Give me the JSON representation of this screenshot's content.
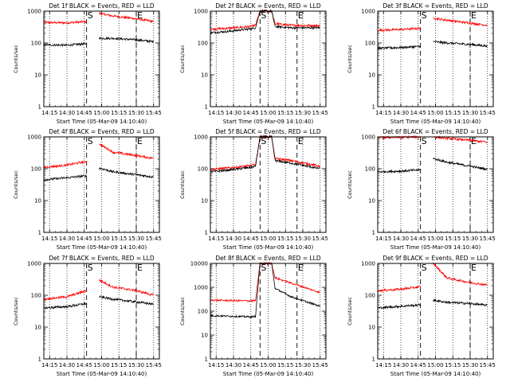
{
  "chart_data": [
    {
      "type": "line",
      "title": "Det 1f BLACK = Events, RED = LLD",
      "xlabel": "Start Time (05-Mar-09 14:10:40)",
      "ylabel": "Counts/sec",
      "yscale": "log",
      "ylim": [
        1,
        1000
      ],
      "xlim": [
        "14:10",
        "15:50"
      ],
      "xticks": [
        "14:15",
        "14:30",
        "14:45",
        "15:00",
        "15:15",
        "15:30",
        "15:45"
      ],
      "yticks": [
        "1",
        "10",
        "100",
        "1000"
      ],
      "markers": [
        {
          "label": "S",
          "time": "14:47"
        },
        {
          "label": "E",
          "time": "15:30"
        }
      ],
      "gap": [
        "14:47",
        "14:58"
      ],
      "series": [
        {
          "name": "Events",
          "color": "#000000",
          "x": [
            "14:10",
            "14:30",
            "14:47",
            "14:58",
            "15:10",
            "15:30",
            "15:45"
          ],
          "values": [
            88,
            85,
            95,
            140,
            140,
            125,
            110
          ]
        },
        {
          "name": "LLD",
          "color": "#ff0000",
          "x": [
            "14:10",
            "14:30",
            "14:47",
            "14:58",
            "15:10",
            "15:30",
            "15:45"
          ],
          "values": [
            440,
            430,
            470,
            850,
            700,
            580,
            470
          ]
        }
      ]
    },
    {
      "type": "line",
      "title": "Det 2f BLACK = Events, RED = LLD",
      "xlabel": "Start Time (05-Mar-09 14:10:40)",
      "ylabel": "Counts/sec",
      "yscale": "log",
      "ylim": [
        1,
        1000
      ],
      "xlim": [
        "14:10",
        "15:50"
      ],
      "xticks": [
        "14:15",
        "14:30",
        "14:45",
        "15:00",
        "15:15",
        "15:30",
        "15:45"
      ],
      "yticks": [
        "1",
        "10",
        "100",
        "1000"
      ],
      "markers": [
        {
          "label": "S",
          "time": "14:53"
        },
        {
          "label": "E",
          "time": "15:25"
        }
      ],
      "gap": null,
      "series": [
        {
          "name": "Events",
          "color": "#000000",
          "x": [
            "14:10",
            "14:25",
            "14:45",
            "14:49",
            "14:53",
            "15:03",
            "15:06",
            "15:20",
            "15:45"
          ],
          "values": [
            210,
            230,
            280,
            300,
            1000,
            1000,
            330,
            300,
            300
          ]
        },
        {
          "name": "LLD",
          "color": "#ff0000",
          "x": [
            "14:10",
            "14:25",
            "14:45",
            "14:49",
            "14:53",
            "15:03",
            "15:06",
            "15:20",
            "15:45"
          ],
          "values": [
            270,
            290,
            330,
            360,
            1000,
            1000,
            400,
            360,
            350
          ]
        }
      ]
    },
    {
      "type": "line",
      "title": "Det 3f BLACK = Events, RED = LLD",
      "xlabel": "Start Time (05-Mar-09 14:10:40)",
      "ylabel": "Counts/sec",
      "yscale": "log",
      "ylim": [
        1,
        1000
      ],
      "xlim": [
        "14:10",
        "15:50"
      ],
      "xticks": [
        "14:15",
        "14:30",
        "14:45",
        "15:00",
        "15:15",
        "15:30",
        "15:45"
      ],
      "yticks": [
        "1",
        "10",
        "100",
        "1000"
      ],
      "markers": [
        {
          "label": "S",
          "time": "14:47"
        },
        {
          "label": "E",
          "time": "15:30"
        }
      ],
      "gap": [
        "14:47",
        "14:58"
      ],
      "series": [
        {
          "name": "Events",
          "color": "#000000",
          "x": [
            "14:10",
            "14:30",
            "14:47",
            "14:58",
            "15:10",
            "15:30",
            "15:45"
          ],
          "values": [
            68,
            72,
            78,
            110,
            100,
            90,
            80
          ]
        },
        {
          "name": "LLD",
          "color": "#ff0000",
          "x": [
            "14:10",
            "14:30",
            "14:47",
            "14:58",
            "15:10",
            "15:30",
            "15:45"
          ],
          "values": [
            250,
            265,
            290,
            600,
            520,
            420,
            360
          ]
        }
      ]
    },
    {
      "type": "line",
      "title": "Det 4f BLACK = Events, RED = LLD",
      "xlabel": "Start Time (05-Mar-09 14:10:40)",
      "ylabel": "Counts/sec",
      "yscale": "log",
      "ylim": [
        1,
        1000
      ],
      "xlim": [
        "14:10",
        "15:50"
      ],
      "xticks": [
        "14:15",
        "14:30",
        "14:45",
        "15:00",
        "15:15",
        "15:30",
        "15:45"
      ],
      "yticks": [
        "1",
        "10",
        "100",
        "1000"
      ],
      "markers": [
        {
          "label": "S",
          "time": "14:47"
        },
        {
          "label": "E",
          "time": "15:30"
        }
      ],
      "gap": [
        "14:47",
        "14:58"
      ],
      "series": [
        {
          "name": "Events",
          "color": "#000000",
          "x": [
            "14:10",
            "14:30",
            "14:47",
            "14:58",
            "15:10",
            "15:30",
            "15:45"
          ],
          "values": [
            45,
            52,
            60,
            105,
            80,
            65,
            55
          ]
        },
        {
          "name": "LLD",
          "color": "#ff0000",
          "x": [
            "14:10",
            "14:30",
            "14:47",
            "14:58",
            "15:10",
            "15:30",
            "15:45"
          ],
          "values": [
            110,
            130,
            170,
            600,
            330,
            260,
            210
          ]
        }
      ]
    },
    {
      "type": "line",
      "title": "Det 5f BLACK = Events, RED = LLD",
      "xlabel": "Start Time (05-Mar-09 14:10:40)",
      "ylabel": "Counts/sec",
      "yscale": "log",
      "ylim": [
        1,
        1000
      ],
      "xlim": [
        "14:10",
        "15:50"
      ],
      "xticks": [
        "14:15",
        "14:30",
        "14:45",
        "15:00",
        "15:15",
        "15:30",
        "15:45"
      ],
      "yticks": [
        "1",
        "10",
        "100",
        "1000"
      ],
      "markers": [
        {
          "label": "S",
          "time": "14:53"
        },
        {
          "label": "E",
          "time": "15:25"
        }
      ],
      "gap": null,
      "series": [
        {
          "name": "Events",
          "color": "#000000",
          "x": [
            "14:10",
            "14:25",
            "14:45",
            "14:49",
            "14:53",
            "15:03",
            "15:06",
            "15:20",
            "15:45"
          ],
          "values": [
            80,
            90,
            110,
            120,
            1000,
            1000,
            180,
            150,
            100
          ]
        },
        {
          "name": "LLD",
          "color": "#ff0000",
          "x": [
            "14:10",
            "14:25",
            "14:45",
            "14:49",
            "14:53",
            "15:03",
            "15:06",
            "15:20",
            "15:45"
          ],
          "values": [
            95,
            105,
            125,
            135,
            1000,
            1000,
            210,
            180,
            120
          ]
        }
      ]
    },
    {
      "type": "line",
      "title": "Det 6f BLACK = Events, RED = LLD",
      "xlabel": "Start Time (05-Mar-09 14:10:40)",
      "ylabel": "Counts/sec",
      "yscale": "log",
      "ylim": [
        1,
        1000
      ],
      "xlim": [
        "14:10",
        "15:50"
      ],
      "xticks": [
        "14:15",
        "14:30",
        "14:45",
        "15:00",
        "15:15",
        "15:30",
        "15:45"
      ],
      "yticks": [
        "1",
        "10",
        "100",
        "1000"
      ],
      "markers": [
        {
          "label": "S",
          "time": "14:47"
        },
        {
          "label": "E",
          "time": "15:30"
        }
      ],
      "gap": [
        "14:47",
        "14:58"
      ],
      "series": [
        {
          "name": "Events",
          "color": "#000000",
          "x": [
            "14:10",
            "14:30",
            "14:47",
            "14:58",
            "15:10",
            "15:30",
            "15:45"
          ],
          "values": [
            80,
            84,
            92,
            210,
            160,
            120,
            95
          ]
        },
        {
          "name": "LLD",
          "color": "#ff0000",
          "x": [
            "14:10",
            "14:30",
            "14:47",
            "14:58",
            "15:10",
            "15:30",
            "15:45"
          ],
          "values": [
            950,
            970,
            1000,
            1000,
            900,
            780,
            680
          ]
        }
      ]
    },
    {
      "type": "line",
      "title": "Det 7f BLACK = Events, RED = LLD",
      "xlabel": "Start Time (05-Mar-09 14:10:40)",
      "ylabel": "Counts/sec",
      "yscale": "log",
      "ylim": [
        1,
        1000
      ],
      "xlim": [
        "14:10",
        "15:50"
      ],
      "xticks": [
        "14:15",
        "14:30",
        "14:45",
        "15:00",
        "15:15",
        "15:30",
        "15:45"
      ],
      "yticks": [
        "1",
        "10",
        "100",
        "1000"
      ],
      "markers": [
        {
          "label": "S",
          "time": "14:47"
        },
        {
          "label": "E",
          "time": "15:30"
        }
      ],
      "gap": [
        "14:47",
        "14:58"
      ],
      "series": [
        {
          "name": "Events",
          "color": "#000000",
          "x": [
            "14:10",
            "14:30",
            "14:47",
            "14:58",
            "15:10",
            "15:30",
            "15:45"
          ],
          "values": [
            40,
            44,
            55,
            90,
            75,
            62,
            52
          ]
        },
        {
          "name": "LLD",
          "color": "#ff0000",
          "x": [
            "14:10",
            "14:30",
            "14:47",
            "14:58",
            "15:10",
            "15:30",
            "15:45"
          ],
          "values": [
            75,
            90,
            140,
            300,
            180,
            140,
            100
          ]
        }
      ]
    },
    {
      "type": "line",
      "title": "Det 8f BLACK = Events, RED = LLD",
      "xlabel": "Start Time (05-Mar-09 14:10:40)",
      "ylabel": "Counts/sec",
      "yscale": "log",
      "ylim": [
        1,
        10000
      ],
      "xlim": [
        "14:10",
        "15:50"
      ],
      "xticks": [
        "14:15",
        "14:30",
        "14:45",
        "15:00",
        "15:15",
        "15:30",
        "15:45"
      ],
      "yticks": [
        "1",
        "10",
        "100",
        "1000",
        "10000"
      ],
      "markers": [
        {
          "label": "S",
          "time": "14:53"
        },
        {
          "label": "E",
          "time": "15:25"
        }
      ],
      "gap": null,
      "series": [
        {
          "name": "Events",
          "color": "#000000",
          "x": [
            "14:10",
            "14:25",
            "14:45",
            "14:49",
            "14:53",
            "15:03",
            "15:06",
            "15:20",
            "15:45"
          ],
          "values": [
            65,
            62,
            58,
            60,
            10000,
            10000,
            900,
            400,
            160
          ]
        },
        {
          "name": "LLD",
          "color": "#ff0000",
          "x": [
            "14:10",
            "14:25",
            "14:45",
            "14:49",
            "14:53",
            "15:03",
            "15:06",
            "15:20",
            "15:45"
          ],
          "values": [
            290,
            280,
            270,
            280,
            10000,
            10000,
            2500,
            1500,
            600
          ]
        }
      ]
    },
    {
      "type": "line",
      "title": "Det 9f BLACK = Events, RED = LLD",
      "xlabel": "Start Time (05-Mar-09 14:10:40)",
      "ylabel": "Counts/sec",
      "yscale": "log",
      "ylim": [
        1,
        1000
      ],
      "xlim": [
        "14:10",
        "15:50"
      ],
      "xticks": [
        "14:15",
        "14:30",
        "14:45",
        "15:00",
        "15:15",
        "15:30",
        "15:45"
      ],
      "yticks": [
        "1",
        "10",
        "100",
        "1000"
      ],
      "markers": [
        {
          "label": "S",
          "time": "14:47"
        },
        {
          "label": "E",
          "time": "15:30"
        }
      ],
      "gap": [
        "14:47",
        "14:58"
      ],
      "series": [
        {
          "name": "Events",
          "color": "#000000",
          "x": [
            "14:10",
            "14:30",
            "14:47",
            "14:58",
            "15:10",
            "15:30",
            "15:45"
          ],
          "values": [
            40,
            45,
            50,
            70,
            60,
            55,
            48
          ]
        },
        {
          "name": "LLD",
          "color": "#ff0000",
          "x": [
            "14:10",
            "14:30",
            "14:47",
            "14:58",
            "15:10",
            "15:30",
            "15:45"
          ],
          "values": [
            140,
            155,
            185,
            1000,
            350,
            250,
            210
          ]
        }
      ]
    }
  ]
}
